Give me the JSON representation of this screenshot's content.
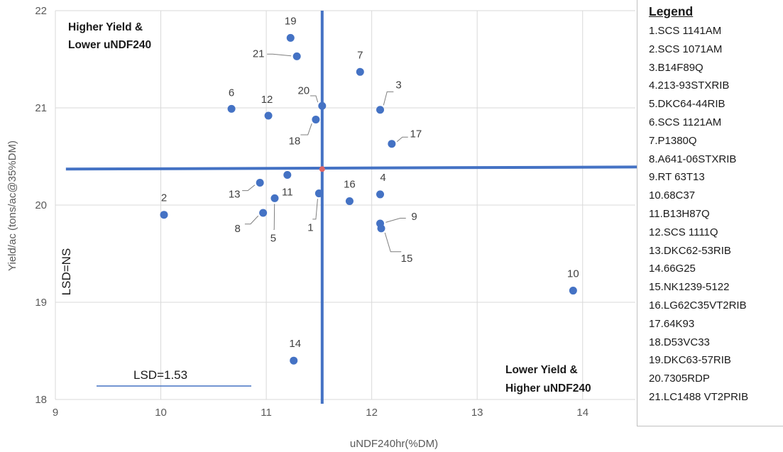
{
  "chart_data": {
    "type": "scatter",
    "xlabel": "uNDF240hr(%DM)",
    "ylabel": "Yield/ac (tons/ac@35%DM)",
    "xlim": [
      9,
      14.5
    ],
    "ylim": [
      18,
      22
    ],
    "xticks": [
      9,
      10,
      11,
      12,
      13,
      14
    ],
    "yticks": [
      18,
      19,
      20,
      21,
      22
    ],
    "grid": true,
    "point_color": "#4472c4",
    "line_color": "#4472c4",
    "mean_x": 11.53,
    "mean_y": 20.37,
    "points": [
      {
        "id": "1",
        "x": 11.5,
        "y": 20.12,
        "label_dx": -12,
        "label_dy": 48,
        "leader": true
      },
      {
        "id": "2",
        "x": 10.03,
        "y": 19.9,
        "label_dx": 0,
        "label_dy": -24,
        "leader": false
      },
      {
        "id": "3",
        "x": 12.08,
        "y": 20.98,
        "label_dx": 26,
        "label_dy": -35,
        "leader": true
      },
      {
        "id": "4",
        "x": 12.08,
        "y": 20.11,
        "label_dx": 4,
        "label_dy": -24,
        "leader": false
      },
      {
        "id": "6",
        "x": 10.67,
        "y": 20.99,
        "label_dx": 0,
        "label_dy": -23,
        "leader": false
      },
      {
        "id": "7",
        "x": 11.89,
        "y": 21.37,
        "label_dx": 0,
        "label_dy": -24,
        "leader": false
      },
      {
        "id": "8",
        "x": 10.97,
        "y": 19.92,
        "label_dx": -36,
        "label_dy": 22,
        "leader": true
      },
      {
        "id": "5",
        "x": 11.08,
        "y": 20.07,
        "label_dx": -2,
        "label_dy": 56,
        "leader": true
      },
      {
        "id": "9",
        "x": 12.08,
        "y": 19.81,
        "label_dx": 48,
        "label_dy": -10,
        "leader": true
      },
      {
        "id": "10",
        "x": 13.91,
        "y": 19.12,
        "label_dx": 0,
        "label_dy": -24,
        "leader": false
      },
      {
        "id": "11",
        "x": 11.2,
        "y": 20.31,
        "label_dx": 0,
        "label_dy": 24,
        "leader": false
      },
      {
        "id": "12",
        "x": 11.02,
        "y": 20.92,
        "label_dx": -2,
        "label_dy": -23,
        "leader": false
      },
      {
        "id": "13",
        "x": 10.94,
        "y": 20.23,
        "label_dx": -36,
        "label_dy": 16,
        "leader": true
      },
      {
        "id": "14",
        "x": 11.26,
        "y": 18.4,
        "label_dx": 2,
        "label_dy": -24,
        "leader": false
      },
      {
        "id": "15",
        "x": 12.09,
        "y": 19.76,
        "label_dx": 36,
        "label_dy": 42,
        "leader": true
      },
      {
        "id": "16",
        "x": 11.79,
        "y": 20.04,
        "label_dx": 0,
        "label_dy": -24,
        "leader": false
      },
      {
        "id": "17",
        "x": 12.19,
        "y": 20.63,
        "label_dx": 34,
        "label_dy": -14,
        "leader": true
      },
      {
        "id": "18",
        "x": 11.47,
        "y": 20.88,
        "label_dx": -30,
        "label_dy": 30,
        "leader": true
      },
      {
        "id": "19",
        "x": 11.23,
        "y": 21.72,
        "label_dx": 0,
        "label_dy": -24,
        "leader": false
      },
      {
        "id": "20",
        "x": 11.53,
        "y": 21.02,
        "label_dx": -26,
        "label_dy": -22,
        "leader": true
      },
      {
        "id": "21",
        "x": 11.29,
        "y": 21.53,
        "label_dx": -54,
        "label_dy": -4,
        "leader": true
      }
    ],
    "annotations": {
      "upper_left": [
        "Higher Yield &",
        "Lower uNDF240"
      ],
      "lower_right": [
        "Lower Yield &",
        "Higher uNDF240"
      ],
      "lsd_x": "LSD=1.53",
      "lsd_y": "LSD=NS"
    },
    "legend": {
      "title": "Legend",
      "placement": "right",
      "entries": [
        "1.SCS 1141AM",
        "2.SCS 1071AM",
        "3.B14F89Q",
        "4.213-93STXRIB",
        "5.DKC64-44RIB",
        "6.SCS 1121AM",
        "7.P1380Q",
        "8.A641-06STXRIB",
        "9.RT 63T13",
        "10.68C37",
        "11.B13H87Q",
        "12.SCS 1111Q",
        "13.DKC62-53RIB",
        "14.66G25",
        "15.NK1239-5122",
        "16.LG62C35VT2RIB",
        "17.64K93",
        "18.D53VC33",
        "19.DKC63-57RIB",
        " 20.7305RDP",
        "21.LC1488 VT2PRIB"
      ]
    }
  }
}
